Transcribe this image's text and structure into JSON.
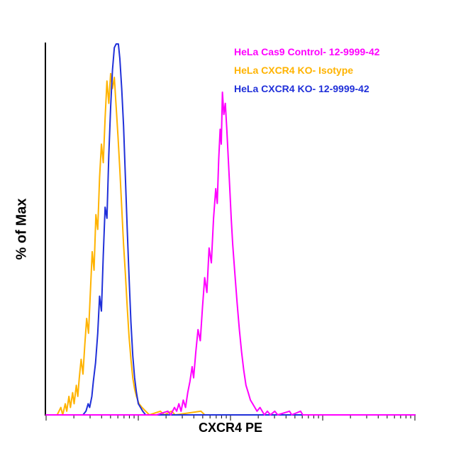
{
  "figure": {
    "xlabel": "CXCR4 PE",
    "ylabel": "% of Max"
  },
  "chart_data": {
    "type": "line",
    "subtype": "flow-cytometry-histogram-overlay",
    "title": "",
    "xlabel": "CXCR4 PE",
    "ylabel": "% of Max",
    "x_scale": "log",
    "x_decades": 4,
    "ylim": [
      0,
      100
    ],
    "grid": false,
    "legend_position": "top-right-inside",
    "axis_color": "#000000",
    "background_color": "#ffffff",
    "draw_order": [
      1,
      2,
      0
    ],
    "series": [
      {
        "name": "HeLa Cas9 Control- 12-9999-42",
        "color": "#FF00FF",
        "peak_x_fraction": 0.478,
        "peak_y_percent": 87,
        "points": [
          [
            0,
            0
          ],
          [
            0.3,
            0
          ],
          [
            0.33,
            1
          ],
          [
            0.338,
            0
          ],
          [
            0.348,
            2
          ],
          [
            0.354,
            1
          ],
          [
            0.36,
            3
          ],
          [
            0.366,
            1
          ],
          [
            0.372,
            4
          ],
          [
            0.378,
            2
          ],
          [
            0.384,
            6
          ],
          [
            0.39,
            9
          ],
          [
            0.396,
            13
          ],
          [
            0.4,
            10
          ],
          [
            0.406,
            17
          ],
          [
            0.412,
            23
          ],
          [
            0.418,
            20
          ],
          [
            0.424,
            29
          ],
          [
            0.43,
            37
          ],
          [
            0.436,
            33
          ],
          [
            0.442,
            45
          ],
          [
            0.448,
            41
          ],
          [
            0.454,
            53
          ],
          [
            0.46,
            61
          ],
          [
            0.464,
            57
          ],
          [
            0.468,
            69
          ],
          [
            0.472,
            77
          ],
          [
            0.475,
            73
          ],
          [
            0.478,
            87
          ],
          [
            0.482,
            81
          ],
          [
            0.486,
            84
          ],
          [
            0.49,
            77
          ],
          [
            0.494,
            69
          ],
          [
            0.498,
            61
          ],
          [
            0.502,
            53
          ],
          [
            0.506,
            46
          ],
          [
            0.512,
            38
          ],
          [
            0.518,
            30
          ],
          [
            0.524,
            23
          ],
          [
            0.53,
            17
          ],
          [
            0.536,
            12
          ],
          [
            0.542,
            8
          ],
          [
            0.548,
            6
          ],
          [
            0.554,
            4
          ],
          [
            0.56,
            3
          ],
          [
            0.566,
            2
          ],
          [
            0.572,
            1
          ],
          [
            0.58,
            2
          ],
          [
            0.586,
            1
          ],
          [
            0.592,
            0
          ],
          [
            0.6,
            1
          ],
          [
            0.608,
            0
          ],
          [
            0.62,
            1
          ],
          [
            0.628,
            0
          ],
          [
            0.66,
            1
          ],
          [
            0.666,
            0
          ],
          [
            0.69,
            1
          ],
          [
            0.696,
            0
          ],
          [
            1,
            0
          ]
        ]
      },
      {
        "name": "HeLa CXCR4 KO- Isotype",
        "color": "#FFB300",
        "peak_x_fraction": 0.175,
        "peak_y_percent": 92,
        "points": [
          [
            0,
            0
          ],
          [
            0.03,
            0
          ],
          [
            0.04,
            2
          ],
          [
            0.045,
            0
          ],
          [
            0.052,
            3
          ],
          [
            0.056,
            1
          ],
          [
            0.062,
            5
          ],
          [
            0.066,
            2
          ],
          [
            0.072,
            6
          ],
          [
            0.076,
            3
          ],
          [
            0.082,
            8
          ],
          [
            0.086,
            5
          ],
          [
            0.09,
            10
          ],
          [
            0.095,
            15
          ],
          [
            0.1,
            11
          ],
          [
            0.105,
            19
          ],
          [
            0.11,
            26
          ],
          [
            0.115,
            22
          ],
          [
            0.12,
            33
          ],
          [
            0.125,
            44
          ],
          [
            0.13,
            39
          ],
          [
            0.135,
            54
          ],
          [
            0.14,
            50
          ],
          [
            0.145,
            64
          ],
          [
            0.15,
            73
          ],
          [
            0.155,
            68
          ],
          [
            0.16,
            80
          ],
          [
            0.165,
            90
          ],
          [
            0.17,
            84
          ],
          [
            0.175,
            92
          ],
          [
            0.18,
            88
          ],
          [
            0.185,
            91
          ],
          [
            0.19,
            83
          ],
          [
            0.195,
            75
          ],
          [
            0.2,
            66
          ],
          [
            0.205,
            56
          ],
          [
            0.21,
            46
          ],
          [
            0.215,
            38
          ],
          [
            0.22,
            29
          ],
          [
            0.225,
            21
          ],
          [
            0.23,
            15
          ],
          [
            0.235,
            10
          ],
          [
            0.24,
            7
          ],
          [
            0.245,
            5
          ],
          [
            0.252,
            3
          ],
          [
            0.26,
            2
          ],
          [
            0.27,
            1
          ],
          [
            0.28,
            0
          ],
          [
            0.31,
            1
          ],
          [
            0.32,
            0
          ],
          [
            0.34,
            1
          ],
          [
            0.35,
            0
          ],
          [
            0.42,
            1
          ],
          [
            0.43,
            0
          ],
          [
            1,
            0
          ]
        ]
      },
      {
        "name": "HeLa CXCR4 KO- 12-9999-42",
        "color": "#2030D9",
        "peak_x_fraction": 0.193,
        "peak_y_percent": 100,
        "points": [
          [
            0,
            0
          ],
          [
            0.1,
            0
          ],
          [
            0.108,
            1
          ],
          [
            0.114,
            3
          ],
          [
            0.118,
            2
          ],
          [
            0.124,
            5
          ],
          [
            0.128,
            9
          ],
          [
            0.134,
            14
          ],
          [
            0.14,
            22
          ],
          [
            0.145,
            32
          ],
          [
            0.15,
            28
          ],
          [
            0.155,
            43
          ],
          [
            0.16,
            56
          ],
          [
            0.165,
            53
          ],
          [
            0.17,
            70
          ],
          [
            0.175,
            83
          ],
          [
            0.18,
            93
          ],
          [
            0.185,
            99
          ],
          [
            0.19,
            100
          ],
          [
            0.196,
            100
          ],
          [
            0.2,
            96
          ],
          [
            0.205,
            88
          ],
          [
            0.21,
            78
          ],
          [
            0.215,
            64
          ],
          [
            0.22,
            50
          ],
          [
            0.225,
            37
          ],
          [
            0.23,
            25
          ],
          [
            0.235,
            16
          ],
          [
            0.24,
            10
          ],
          [
            0.245,
            6
          ],
          [
            0.25,
            3
          ],
          [
            0.256,
            2
          ],
          [
            0.262,
            1
          ],
          [
            0.27,
            0
          ],
          [
            1,
            0
          ]
        ]
      }
    ]
  }
}
